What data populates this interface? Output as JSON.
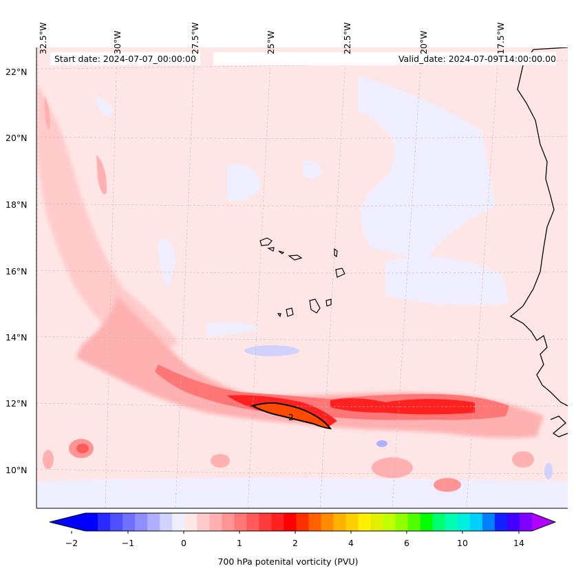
{
  "map": {
    "start_date": "Start date: 2024-07-07_00:00:00",
    "valid_date": "Valid_date: 2024-07-09T14:00:00.00",
    "contour_label": "2",
    "lon_labels": [
      "32.5°W",
      "30°W",
      "27.5°W",
      "25°W",
      "22.5°W",
      "20°W",
      "17.5°W"
    ],
    "lat_labels": [
      "22°N",
      "20°N",
      "18°N",
      "16°N",
      "14°N",
      "12°N",
      "10°N"
    ],
    "colors": {
      "land_outline": "#000000",
      "gridline": "#bbbbbb",
      "pv_slight_negative": "#eeeeff",
      "pv_slight_positive": "#ffe6e6",
      "pv_moderate": "#ffb0b0",
      "pv_high": "#ff2020",
      "pv_peak": "#ff4a00"
    }
  },
  "colorbar": {
    "label": "700 hPa potenital vorticity (PVU)",
    "tick_labels": [
      "−2",
      "−1",
      "0",
      "1",
      "2",
      "4",
      "6",
      "10",
      "14"
    ],
    "colors": [
      "#0000ff",
      "#2a2aff",
      "#4f4fff",
      "#7070ff",
      "#8f8fff",
      "#b0b0ff",
      "#d2d2ff",
      "#eeeeff",
      "#ffe6e6",
      "#ffcaca",
      "#ffb0b0",
      "#ff9494",
      "#ff7676",
      "#ff5a5a",
      "#ff3a3a",
      "#ff2020",
      "#ff0000",
      "#ff3000",
      "#ff6000",
      "#ff8c00",
      "#ffb000",
      "#ffd000",
      "#fff000",
      "#e0f000",
      "#c0ff00",
      "#90ff00",
      "#50ff00",
      "#00ff00",
      "#00ff70",
      "#00ffb0",
      "#00f0e0",
      "#00d0ff",
      "#0080ff",
      "#1020ff",
      "#4000ff",
      "#8000ff"
    ]
  }
}
